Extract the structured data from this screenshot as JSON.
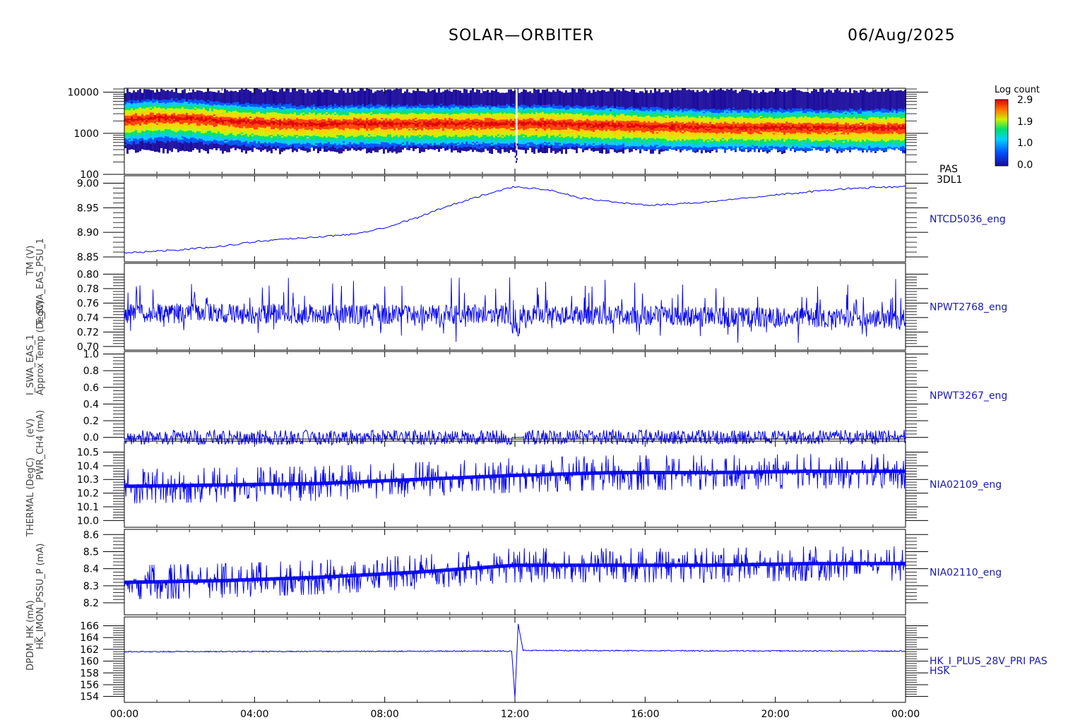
{
  "header": {
    "title": "SOLAR—ORBITER",
    "date": "06/Aug/2025"
  },
  "y_labels": [
    "(eV)",
    "Approx Temp (DegC)",
    "TM (V)",
    "T_SWA_EAS_PSU_1",
    "I_SWA_EAS_1",
    "PWR_CH4 (mA)",
    "THERMAL (DegC)",
    "HK_IMON_PSSU_P (mA)",
    "DPDM_HK (mA)"
  ],
  "colorbar": {
    "label": "Log count",
    "ticks": [
      "2.9",
      "1.9",
      "1.0",
      "0.0"
    ]
  },
  "chart_data": [
    {
      "type": "heatmap",
      "panel_label": [
        "PAS",
        "3DL1"
      ],
      "yscale": "log",
      "ylim": [
        100,
        12500
      ],
      "y_ticks": [
        {
          "v": 10000,
          "t": "10000"
        },
        {
          "v": 1000,
          "t": "1000"
        },
        {
          "v": 100,
          "t": "100"
        }
      ],
      "peak_energy_eV": [
        {
          "x": 0,
          "y": 2200
        },
        {
          "x": 1,
          "y": 2500
        },
        {
          "x": 2,
          "y": 2400
        },
        {
          "x": 3,
          "y": 2100
        },
        {
          "x": 4,
          "y": 1900
        },
        {
          "x": 5,
          "y": 1800
        },
        {
          "x": 6,
          "y": 1750
        },
        {
          "x": 7,
          "y": 1800
        },
        {
          "x": 8,
          "y": 1800
        },
        {
          "x": 9,
          "y": 1800
        },
        {
          "x": 10,
          "y": 1800
        },
        {
          "x": 11,
          "y": 1800
        },
        {
          "x": 12,
          "y": 1800
        },
        {
          "x": 13,
          "y": 1800
        },
        {
          "x": 14,
          "y": 1700
        },
        {
          "x": 15,
          "y": 1650
        },
        {
          "x": 16,
          "y": 1550
        },
        {
          "x": 17,
          "y": 1500
        },
        {
          "x": 18,
          "y": 1450
        },
        {
          "x": 19,
          "y": 1450
        },
        {
          "x": 20,
          "y": 1450
        },
        {
          "x": 21,
          "y": 1450
        },
        {
          "x": 22,
          "y": 1400
        },
        {
          "x": 23,
          "y": 1400
        },
        {
          "x": 24,
          "y": 1450
        }
      ],
      "color_scale": [
        "#1a0a9c",
        "#0050ff",
        "#00c8ff",
        "#00e070",
        "#c8f000",
        "#ffd000",
        "#ff4000",
        "#e00000"
      ]
    },
    {
      "type": "line",
      "panel_label": [
        "NTCD5036_eng"
      ],
      "ylim": [
        8.84,
        9.015
      ],
      "y_ticks": [
        {
          "v": 9.0,
          "t": "9.00"
        },
        {
          "v": 8.95,
          "t": "8.95"
        },
        {
          "v": 8.9,
          "t": "8.90"
        },
        {
          "v": 8.85,
          "t": "8.85"
        }
      ],
      "series": [
        {
          "points": [
            {
              "x": 0,
              "y": 8.858
            },
            {
              "x": 1,
              "y": 8.862
            },
            {
              "x": 2,
              "y": 8.866
            },
            {
              "x": 3,
              "y": 8.872
            },
            {
              "x": 4,
              "y": 8.881
            },
            {
              "x": 5,
              "y": 8.887
            },
            {
              "x": 6,
              "y": 8.891
            },
            {
              "x": 7,
              "y": 8.896
            },
            {
              "x": 8,
              "y": 8.91
            },
            {
              "x": 9,
              "y": 8.93
            },
            {
              "x": 10,
              "y": 8.955
            },
            {
              "x": 11,
              "y": 8.975
            },
            {
              "x": 12,
              "y": 8.993
            },
            {
              "x": 13,
              "y": 8.987
            },
            {
              "x": 14,
              "y": 8.97
            },
            {
              "x": 15,
              "y": 8.962
            },
            {
              "x": 16,
              "y": 8.955
            },
            {
              "x": 17,
              "y": 8.958
            },
            {
              "x": 18,
              "y": 8.962
            },
            {
              "x": 19,
              "y": 8.97
            },
            {
              "x": 20,
              "y": 8.976
            },
            {
              "x": 21,
              "y": 8.982
            },
            {
              "x": 22,
              "y": 8.988
            },
            {
              "x": 23,
              "y": 8.991
            },
            {
              "x": 24,
              "y": 8.993
            }
          ]
        }
      ]
    },
    {
      "type": "line",
      "panel_label": [
        "NPWT2768_eng"
      ],
      "ylim": [
        0.695,
        0.815
      ],
      "y_ticks": [
        {
          "v": 0.8,
          "t": "0.80"
        },
        {
          "v": 0.78,
          "t": "0.78"
        },
        {
          "v": 0.76,
          "t": "0.76"
        },
        {
          "v": 0.74,
          "t": "0.74"
        },
        {
          "v": 0.72,
          "t": "0.72"
        },
        {
          "v": 0.7,
          "t": "0.70"
        }
      ],
      "series": [
        {
          "baseline": [
            {
              "x": 0,
              "y": 0.746
            },
            {
              "x": 6,
              "y": 0.745
            },
            {
              "x": 12,
              "y": 0.744
            },
            {
              "x": 18,
              "y": 0.741
            },
            {
              "x": 24,
              "y": 0.738
            }
          ],
          "range": [
            0.705,
            0.805
          ]
        }
      ]
    },
    {
      "type": "line",
      "panel_label": [
        "NPWT3267_eng"
      ],
      "ylim": [
        -0.02,
        1.03
      ],
      "y_ticks": [
        {
          "v": 1.0,
          "t": "1.0"
        },
        {
          "v": 0.8,
          "t": "0.8"
        },
        {
          "v": 0.6,
          "t": "0.6"
        },
        {
          "v": 0.4,
          "t": "0.4"
        },
        {
          "v": 0.2,
          "t": "0.2"
        },
        {
          "v": 0.0,
          "t": "0.0"
        }
      ],
      "series": [
        {
          "points": [
            {
              "x": 0,
              "y": 0.0
            },
            {
              "x": 24,
              "y": 0.0
            }
          ]
        }
      ]
    },
    {
      "type": "line",
      "panel_label": [
        "NIA02109_eng"
      ],
      "ylim": [
        9.95,
        10.58
      ],
      "y_ticks": [
        {
          "v": 10.5,
          "t": "10.5"
        },
        {
          "v": 10.4,
          "t": "10.4"
        },
        {
          "v": 10.3,
          "t": "10.3"
        },
        {
          "v": 10.2,
          "t": "10.2"
        },
        {
          "v": 10.1,
          "t": "10.1"
        },
        {
          "v": 10.0,
          "t": "10.0"
        }
      ],
      "series": [
        {
          "levels": [
            {
              "x": 0,
              "y": 10.25
            },
            {
              "x": 3,
              "y": 10.26
            },
            {
              "x": 6,
              "y": 10.27
            },
            {
              "x": 9,
              "y": 10.3
            },
            {
              "x": 12,
              "y": 10.33
            },
            {
              "x": 15,
              "y": 10.35
            },
            {
              "x": 18,
              "y": 10.35
            },
            {
              "x": 21,
              "y": 10.36
            },
            {
              "x": 24,
              "y": 10.36
            }
          ],
          "range": [
            10.0,
            10.55
          ]
        }
      ]
    },
    {
      "type": "line",
      "panel_label": [
        "NIA02110_eng"
      ],
      "ylim": [
        8.13,
        8.63
      ],
      "y_ticks": [
        {
          "v": 8.6,
          "t": "8.6"
        },
        {
          "v": 8.5,
          "t": "8.5"
        },
        {
          "v": 8.4,
          "t": "8.4"
        },
        {
          "v": 8.3,
          "t": "8.3"
        },
        {
          "v": 8.2,
          "t": "8.2"
        }
      ],
      "series": [
        {
          "levels": [
            {
              "x": 0,
              "y": 8.32
            },
            {
              "x": 3,
              "y": 8.33
            },
            {
              "x": 6,
              "y": 8.35
            },
            {
              "x": 9,
              "y": 8.38
            },
            {
              "x": 12,
              "y": 8.42
            },
            {
              "x": 15,
              "y": 8.42
            },
            {
              "x": 18,
              "y": 8.42
            },
            {
              "x": 21,
              "y": 8.43
            },
            {
              "x": 24,
              "y": 8.43
            }
          ],
          "range": [
            8.15,
            8.58
          ]
        }
      ]
    },
    {
      "type": "line",
      "panel_label": [
        "HK_I_PLUS_28V_PRI PAS",
        "HSK"
      ],
      "ylim": [
        153,
        167.5
      ],
      "y_ticks": [
        {
          "v": 166,
          "t": "166"
        },
        {
          "v": 164,
          "t": "164"
        },
        {
          "v": 162,
          "t": "162"
        },
        {
          "v": 160,
          "t": "160"
        },
        {
          "v": 158,
          "t": "158"
        },
        {
          "v": 156,
          "t": "156"
        },
        {
          "v": 154,
          "t": "154"
        }
      ],
      "series": [
        {
          "points": [
            {
              "x": 0,
              "y": 161.6
            },
            {
              "x": 11.9,
              "y": 161.7
            },
            {
              "x": 12.0,
              "y": 153.8
            },
            {
              "x": 12.1,
              "y": 166.3
            },
            {
              "x": 12.25,
              "y": 161.8
            },
            {
              "x": 24,
              "y": 161.7
            }
          ]
        }
      ]
    }
  ],
  "x_axis": {
    "range": [
      0,
      24
    ],
    "ticks": [
      {
        "v": 0,
        "t": "00:00"
      },
      {
        "v": 4,
        "t": "04:00"
      },
      {
        "v": 8,
        "t": "08:00"
      },
      {
        "v": 12,
        "t": "12:00"
      },
      {
        "v": 16,
        "t": "16:00"
      },
      {
        "v": 20,
        "t": "20:00"
      },
      {
        "v": 24,
        "t": "00:00"
      }
    ]
  },
  "colors": {
    "line": "#0000ee",
    "label": "#1a1ab0"
  }
}
